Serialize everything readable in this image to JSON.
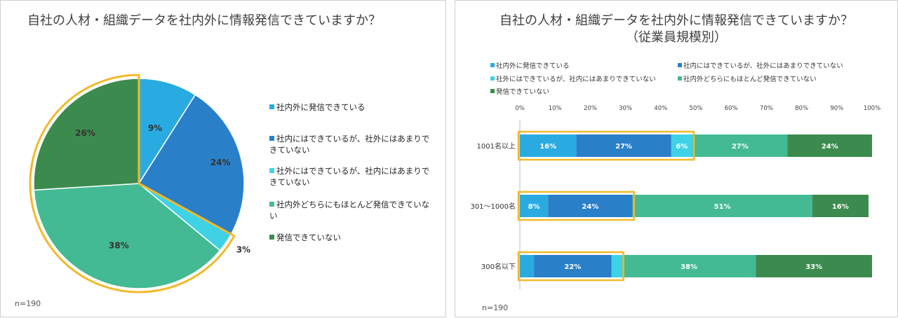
{
  "colors": {
    "c1": "#29abe2",
    "c2": "#2a7fc9",
    "c3": "#3fd2e6",
    "c4": "#43ba94",
    "c5": "#3c8b4e",
    "highlight": "#f2b92a"
  },
  "left": {
    "title": "自社の人材・組織データを社内外に情報発信できていますか？",
    "n_label": "n=190",
    "legend": [
      "社内外に発信できている",
      "社内にはできているが、社外にはあまりできていない",
      "社外にはできているが、社内にはあまりできていない",
      "社内外どちらにもほとんど発信できていない",
      "発信できていない"
    ]
  },
  "right": {
    "title": "自社の人材・組織データを社内外に情報発信できていますか？",
    "subtitle": "（従業員規模別）",
    "n_label": "n=190",
    "legend": [
      "社内外に発信できている",
      "社内にはできているが、社外にはあまりできていない",
      "社外にはできているが、社内にはあまりできていない",
      "社内外どちらにもほとんど発信できていない",
      "発信できていない"
    ]
  },
  "chart_data": [
    {
      "type": "pie",
      "title": "自社の人材・組織データを社内外に情報発信できていますか？",
      "categories": [
        "社内外に発信できている",
        "社内にはできているが、社外にはあまりできていない",
        "社外にはできているが、社内にはあまりできていない",
        "社内外どちらにもほとんど発信できていない",
        "発信できていない"
      ],
      "values": [
        9,
        24,
        3,
        38,
        26
      ],
      "labels": [
        "9%",
        "24%",
        "3%",
        "38%",
        "26%"
      ],
      "legend_position": "right"
    },
    {
      "type": "bar",
      "orientation": "horizontal",
      "stacked": true,
      "title": "自社の人材・組織データを社内外に情報発信できていますか？",
      "subtitle": "（従業員規模別）",
      "categories": [
        "1001名以上",
        "301～1000名",
        "300名以下"
      ],
      "xlim": [
        0,
        100
      ],
      "xticks": [
        "0%",
        "10%",
        "20%",
        "30%",
        "40%",
        "50%",
        "60%",
        "70%",
        "80%",
        "90%",
        "100%"
      ],
      "legend_position": "top",
      "series": [
        {
          "name": "社内外に発信できている",
          "values": [
            16,
            8,
            4
          ],
          "labels": [
            "16%",
            "8%",
            ""
          ]
        },
        {
          "name": "社内にはできているが、社外にはあまりできていない",
          "values": [
            27,
            24,
            22
          ],
          "labels": [
            "27%",
            "24%",
            "22%"
          ]
        },
        {
          "name": "社外にはできているが、社内にはあまりできていない",
          "values": [
            6,
            0,
            3
          ],
          "labels": [
            "6%",
            "",
            ""
          ]
        },
        {
          "name": "社内外どちらにもほとんど発信できていない",
          "values": [
            27,
            51,
            38
          ],
          "labels": [
            "27%",
            "51%",
            "38%"
          ]
        },
        {
          "name": "発信できていない",
          "values": [
            24,
            16,
            33
          ],
          "labels": [
            "24%",
            "16%",
            "33%"
          ]
        }
      ]
    }
  ]
}
